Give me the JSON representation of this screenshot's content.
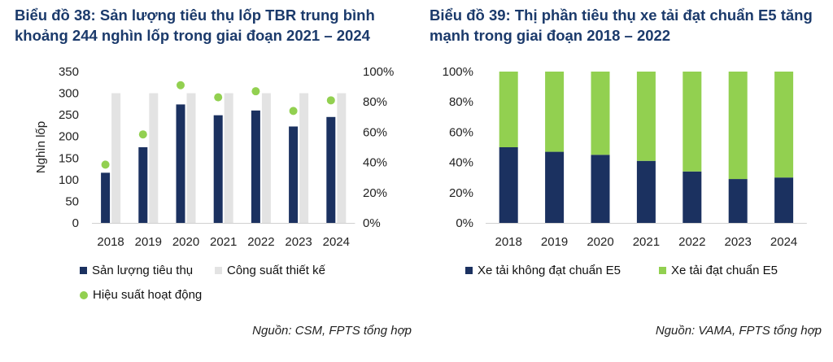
{
  "colors": {
    "navy": "#1b3160",
    "gray": "#e3e3e3",
    "green": "#92d050",
    "title": "#1b3a6b"
  },
  "chart_data": [
    {
      "type": "bar",
      "title": "Biểu đồ 38: Sản lượng tiêu thụ lốp TBR trung bình khoảng 244 nghìn lốp trong giai đoạn 2021 – 2024",
      "ylabel": "Nghìn lốp",
      "categories": [
        "2018",
        "2019",
        "2020",
        "2021",
        "2022",
        "2023",
        "2024"
      ],
      "ylim": [
        0,
        350
      ],
      "y_ticks": [
        "0",
        "50",
        "100",
        "150",
        "200",
        "250",
        "300",
        "350"
      ],
      "y2lim": [
        0,
        100
      ],
      "y2_ticks": [
        "0%",
        "20%",
        "40%",
        "60%",
        "80%",
        "100%"
      ],
      "series": [
        {
          "name": "Sản lượng tiêu thụ",
          "type": "bar",
          "axis": "left",
          "color": "#1b3160",
          "values": [
            116,
            175,
            274,
            249,
            260,
            223,
            245
          ]
        },
        {
          "name": "Công suất thiết kế",
          "type": "bar",
          "axis": "left",
          "color": "#e3e3e3",
          "values": [
            300,
            300,
            300,
            300,
            300,
            300,
            300
          ]
        },
        {
          "name": "Hiệu suất hoạt động",
          "type": "scatter",
          "axis": "right",
          "color": "#92d050",
          "values": [
            38.5,
            58.5,
            91,
            83,
            87,
            74,
            81
          ]
        }
      ],
      "legend": "bottom",
      "grid": false,
      "source": "Nguồn: CSM, FPTS tổng hợp"
    },
    {
      "type": "bar",
      "stacked": true,
      "title": "Biểu đồ 39: Thị phần tiêu thụ xe tải đạt chuẩn E5 tăng mạnh trong giai đoạn 2018 – 2022",
      "categories": [
        "2018",
        "2019",
        "2020",
        "2021",
        "2022",
        "2023",
        "2024"
      ],
      "ylim": [
        0,
        100
      ],
      "y_ticks": [
        "0%",
        "20%",
        "40%",
        "60%",
        "80%",
        "100%"
      ],
      "series": [
        {
          "name": "Xe tải không đạt chuẩn E5",
          "color": "#1b3160",
          "values": [
            50,
            47,
            45,
            41,
            34,
            29,
            30
          ]
        },
        {
          "name": "Xe tải đạt chuẩn E5",
          "color": "#92d050",
          "values": [
            50,
            53,
            55,
            59,
            66,
            71,
            70
          ]
        }
      ],
      "legend": "bottom",
      "grid": false,
      "source": "Nguồn: VAMA, FPTS tổng hợp"
    }
  ]
}
